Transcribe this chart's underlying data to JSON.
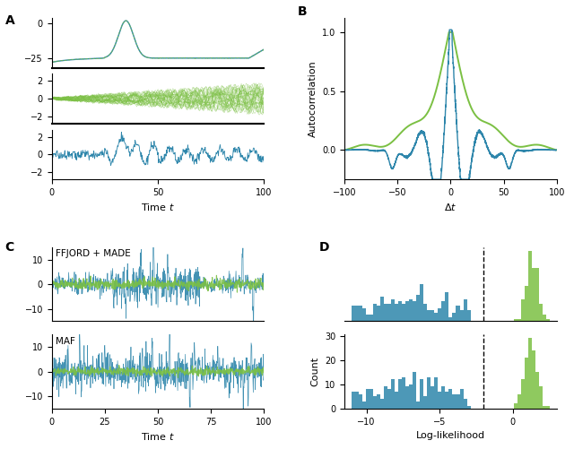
{
  "blue_color": "#2e86ab",
  "green_color": "#7bc043",
  "fig_bg": "#ffffff",
  "panel_C_top_label": "FFJORD + MADE",
  "panel_C_bot_label": "MAF",
  "dashed_line_x": -2.0,
  "xlabel_bottom": "Log-likelihood",
  "ylabel_D": "Count"
}
